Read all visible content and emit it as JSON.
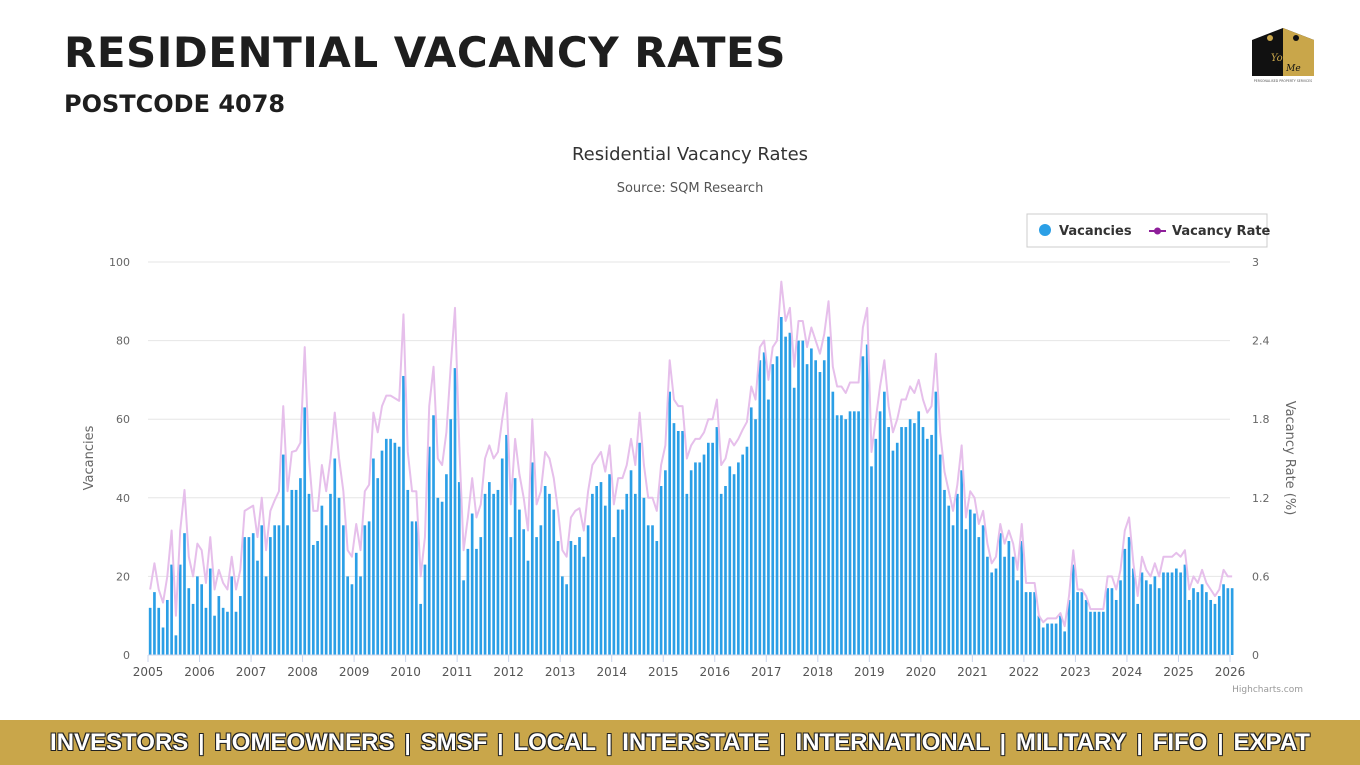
{
  "header": {
    "title": "RESIDENTIAL VACANCY RATES",
    "subtitle": "POSTCODE 4078"
  },
  "logo": {
    "text_top": "You",
    "text_mid": "& Me",
    "tagline": "PERSONALISED PROPERTY SERVICES"
  },
  "footer": {
    "items": [
      "INVESTORS",
      "HOMEOWNERS",
      "SMSF",
      "LOCAL",
      "INTERSTATE",
      "INTERNATIONAL",
      "MILITARY",
      "FIFO",
      "EXPAT"
    ],
    "separator": "|"
  },
  "chart_data": {
    "type": "bar",
    "title": "Residential Vacancy Rates",
    "subtitle": "Source: SQM Research",
    "credit": "Highcharts.com",
    "ylabel": "Vacancies",
    "y2label": "Vacancy Rate (%)",
    "ylim": [
      0,
      100
    ],
    "y2lim": [
      0,
      3
    ],
    "yticks": [
      "0",
      "20",
      "40",
      "60",
      "80",
      "100"
    ],
    "y2ticks": [
      "0",
      "0.6",
      "1.2",
      "1.8",
      "2.4",
      "3"
    ],
    "xticks": [
      "2005",
      "2006",
      "2007",
      "2008",
      "2009",
      "2010",
      "2011",
      "2012",
      "2013",
      "2014",
      "2015",
      "2016",
      "2017",
      "2018",
      "2019",
      "2020",
      "2021",
      "2022",
      "2023",
      "2024",
      "2025",
      "2026"
    ],
    "x_start": "2005-01",
    "grid": true,
    "legend_position": "top-right",
    "series": [
      {
        "name": "Vacancies",
        "type": "bar",
        "color": "#2b9fe6",
        "values": [
          12,
          16,
          12,
          7,
          14,
          23,
          5,
          23,
          31,
          17,
          13,
          20,
          18,
          12,
          22,
          10,
          15,
          12,
          11,
          20,
          11,
          15,
          30,
          30,
          31,
          24,
          33,
          20,
          30,
          33,
          33,
          51,
          33,
          42,
          42,
          45,
          63,
          41,
          28,
          29,
          38,
          33,
          41,
          50,
          40,
          33,
          20,
          18,
          26,
          20,
          33,
          34,
          50,
          45,
          52,
          55,
          55,
          54,
          53,
          71,
          42,
          34,
          34,
          13,
          23,
          53,
          61,
          40,
          39,
          46,
          60,
          73,
          44,
          19,
          27,
          36,
          27,
          30,
          41,
          44,
          41,
          42,
          50,
          56,
          30,
          45,
          37,
          32,
          24,
          49,
          30,
          33,
          43,
          41,
          37,
          29,
          20,
          18,
          29,
          28,
          30,
          25,
          33,
          41,
          43,
          44,
          38,
          46,
          30,
          37,
          37,
          41,
          47,
          41,
          54,
          40,
          33,
          33,
          29,
          43,
          47,
          67,
          59,
          57,
          57,
          41,
          47,
          49,
          49,
          51,
          54,
          54,
          58,
          41,
          43,
          48,
          46,
          49,
          51,
          53,
          63,
          60,
          75,
          77,
          65,
          74,
          76,
          86,
          81,
          82,
          68,
          80,
          80,
          74,
          78,
          75,
          72,
          75,
          81,
          67,
          61,
          61,
          60,
          62,
          62,
          62,
          76,
          79,
          48,
          55,
          62,
          67,
          58,
          52,
          54,
          58,
          58,
          60,
          59,
          62,
          58,
          55,
          56,
          67,
          51,
          42,
          38,
          33,
          41,
          47,
          32,
          37,
          36,
          30,
          33,
          25,
          21,
          22,
          31,
          25,
          29,
          25,
          19,
          29,
          16,
          16,
          16,
          10,
          7,
          8,
          8,
          8,
          10,
          6,
          14,
          23,
          16,
          16,
          14,
          11,
          11,
          11,
          11,
          17,
          17,
          14,
          19,
          27,
          30,
          22,
          13,
          21,
          19,
          18,
          20,
          17,
          21,
          21,
          21,
          22,
          21,
          23,
          14,
          17,
          16,
          18,
          16,
          14,
          13,
          15,
          18,
          17,
          17
        ]
      },
      {
        "name": "Vacancy Rate",
        "type": "line",
        "color": "#8e1f9a",
        "values": [
          0.5,
          0.7,
          0.5,
          0.4,
          0.6,
          0.95,
          0.3,
          0.95,
          1.26,
          0.75,
          0.6,
          0.85,
          0.8,
          0.55,
          0.9,
          0.5,
          0.65,
          0.55,
          0.5,
          0.75,
          0.5,
          0.65,
          1.1,
          1.12,
          1.14,
          0.9,
          1.2,
          0.8,
          1.1,
          1.18,
          1.25,
          1.9,
          1.25,
          1.55,
          1.56,
          1.62,
          2.35,
          1.5,
          1.1,
          1.1,
          1.45,
          1.25,
          1.5,
          1.85,
          1.5,
          1.25,
          0.8,
          0.75,
          1.0,
          0.8,
          1.25,
          1.3,
          1.85,
          1.7,
          1.9,
          1.98,
          1.98,
          1.96,
          1.94,
          2.6,
          1.55,
          1.25,
          1.25,
          0.6,
          0.9,
          1.9,
          2.2,
          1.5,
          1.45,
          1.7,
          2.2,
          2.65,
          1.6,
          0.8,
          1.05,
          1.35,
          1.05,
          1.15,
          1.5,
          1.6,
          1.5,
          1.55,
          1.8,
          2.0,
          1.15,
          1.65,
          1.38,
          1.2,
          0.95,
          1.8,
          1.15,
          1.25,
          1.55,
          1.5,
          1.35,
          1.1,
          0.8,
          0.75,
          1.05,
          1.1,
          1.12,
          0.95,
          1.25,
          1.45,
          1.5,
          1.55,
          1.4,
          1.6,
          1.15,
          1.35,
          1.35,
          1.45,
          1.65,
          1.45,
          1.85,
          1.45,
          1.2,
          1.2,
          1.1,
          1.45,
          1.6,
          2.25,
          1.95,
          1.9,
          1.9,
          1.5,
          1.6,
          1.65,
          1.65,
          1.7,
          1.8,
          1.8,
          1.95,
          1.45,
          1.5,
          1.65,
          1.6,
          1.65,
          1.72,
          1.78,
          2.05,
          1.95,
          2.35,
          2.4,
          2.1,
          2.35,
          2.4,
          2.85,
          2.55,
          2.65,
          2.2,
          2.55,
          2.55,
          2.35,
          2.5,
          2.4,
          2.3,
          2.45,
          2.7,
          2.2,
          2.05,
          2.05,
          2.0,
          2.08,
          2.08,
          2.08,
          2.5,
          2.65,
          1.55,
          1.8,
          2.05,
          2.25,
          1.9,
          1.7,
          1.8,
          1.95,
          1.95,
          2.05,
          2.0,
          2.1,
          1.95,
          1.85,
          1.9,
          2.3,
          1.7,
          1.4,
          1.25,
          1.1,
          1.3,
          1.6,
          1.05,
          1.25,
          1.2,
          1.0,
          1.1,
          0.85,
          0.7,
          0.75,
          1.0,
          0.85,
          0.95,
          0.85,
          0.65,
          1.0,
          0.55,
          0.55,
          0.55,
          0.3,
          0.25,
          0.28,
          0.28,
          0.28,
          0.32,
          0.22,
          0.45,
          0.8,
          0.5,
          0.5,
          0.45,
          0.35,
          0.35,
          0.35,
          0.35,
          0.6,
          0.6,
          0.5,
          0.65,
          0.95,
          1.05,
          0.7,
          0.45,
          0.75,
          0.65,
          0.6,
          0.7,
          0.6,
          0.75,
          0.75,
          0.75,
          0.78,
          0.75,
          0.8,
          0.5,
          0.6,
          0.55,
          0.65,
          0.55,
          0.5,
          0.45,
          0.5,
          0.65,
          0.6,
          0.6
        ]
      }
    ]
  }
}
